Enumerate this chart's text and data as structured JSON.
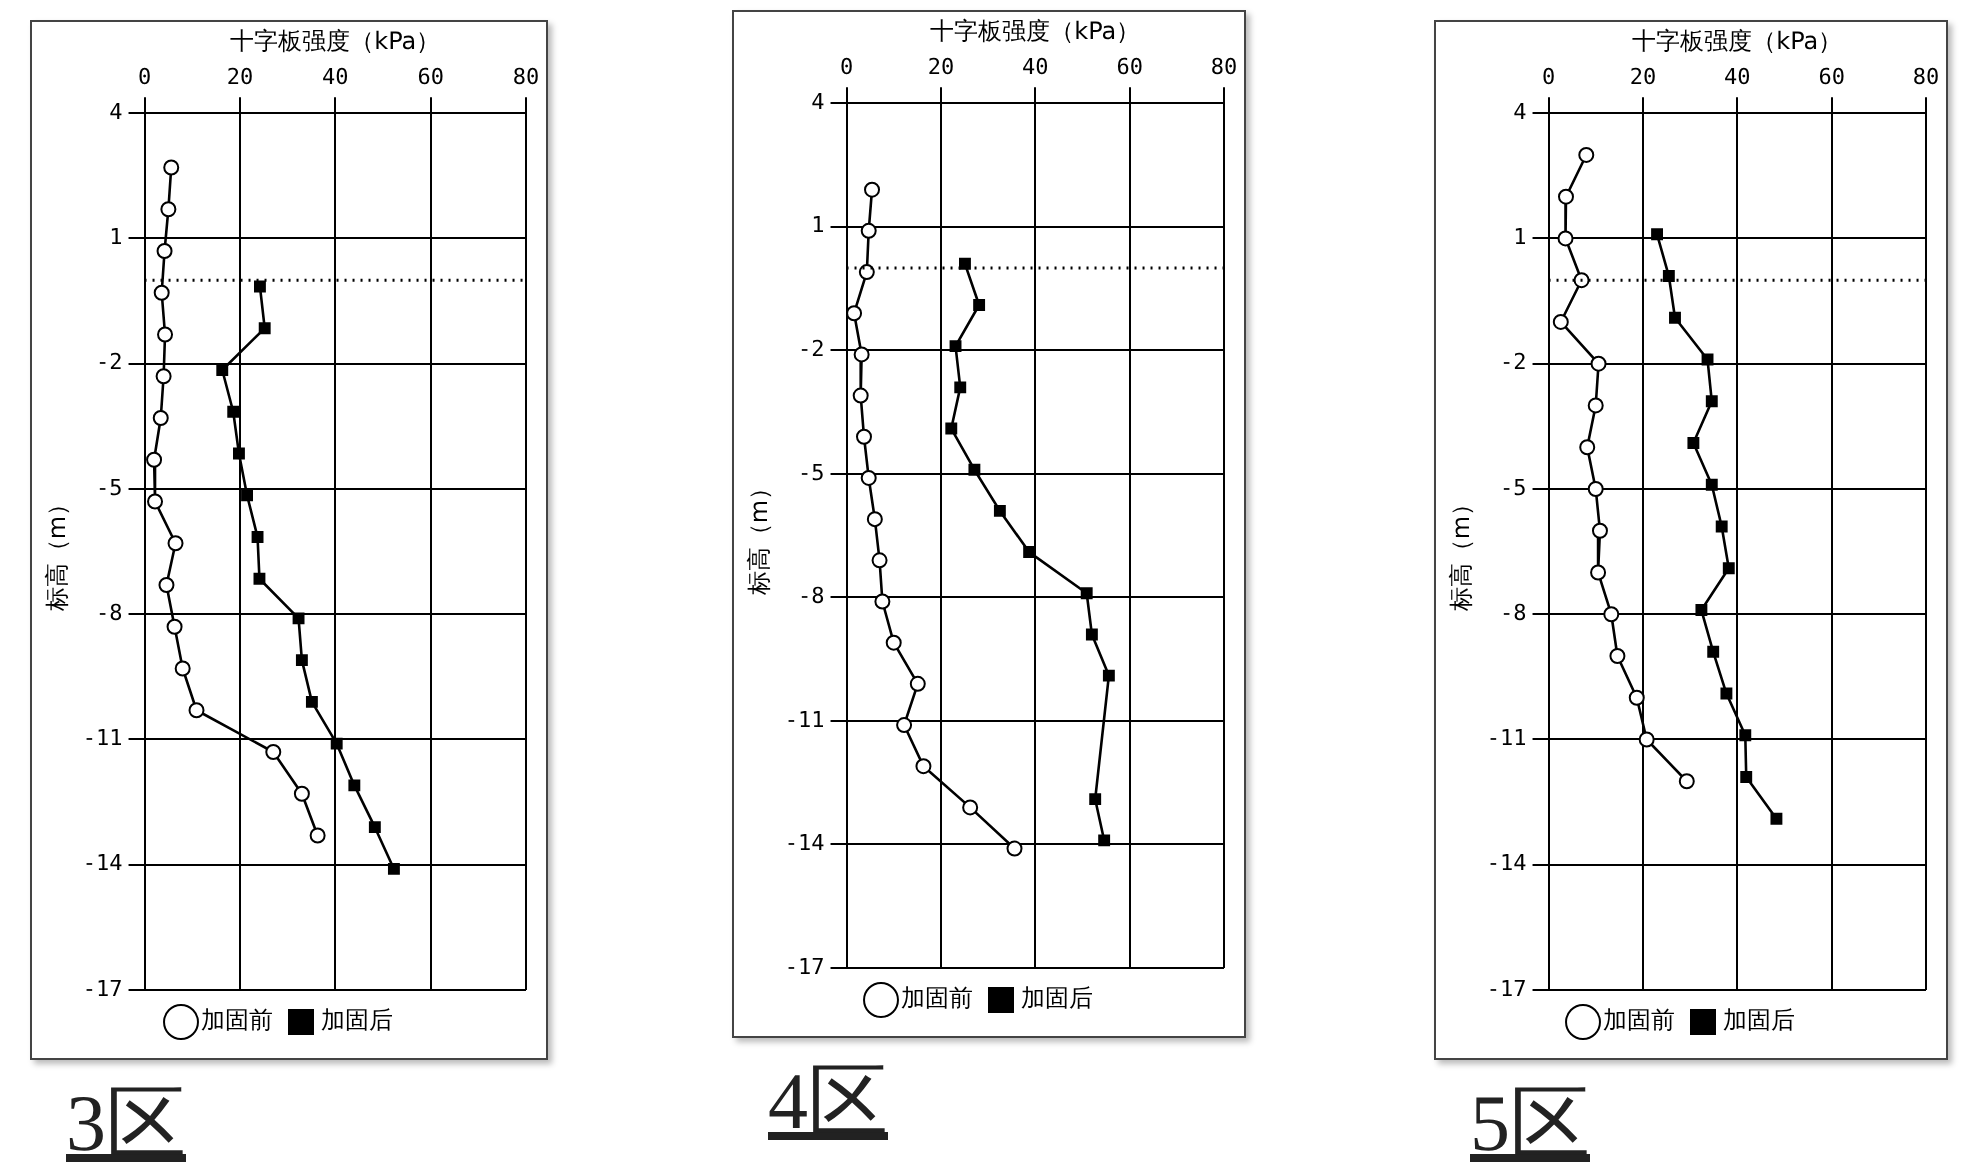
{
  "chart_data": [
    {
      "type": "line",
      "xlabel": "十字板强度（kPa）",
      "ylabel": "标高（m）",
      "xlim": [
        0,
        80
      ],
      "xticks": [
        0,
        20,
        40,
        60,
        80
      ],
      "ylim": [
        -17,
        4
      ],
      "yticks": [
        -17,
        -14,
        -11,
        -8,
        -5,
        -2,
        1,
        4
      ],
      "grid": true,
      "legend": "bottom",
      "ref_lines": [
        {
          "axis": "y",
          "value": 0,
          "line_style": "dotted",
          "color": "#000000"
        }
      ],
      "annotations": [
        "3区"
      ],
      "series": [
        {
          "name": "加固前",
          "color": "#000000",
          "marker": "circle",
          "x": [
            5.6,
            5.0,
            4.2,
            3.6,
            4.3,
            4.0,
            3.4,
            2.0,
            2.2,
            6.5,
            4.6,
            6.3,
            8.0,
            10.9,
            27.0,
            33.0,
            36.3
          ],
          "values": [
            2.7,
            1.7,
            0.7,
            -0.3,
            -1.3,
            -2.3,
            -3.3,
            -4.3,
            -5.3,
            -6.3,
            -7.3,
            -8.3,
            -9.3,
            -10.3,
            -11.3,
            -12.3,
            -13.3
          ]
        },
        {
          "name": "加固后",
          "color": "#000000",
          "marker": "square",
          "x": [
            24.2,
            25.2,
            16.3,
            18.6,
            19.8,
            21.5,
            23.7,
            24.1,
            32.3,
            33.0,
            35.1,
            40.3,
            44.0,
            48.3,
            52.3
          ],
          "values": [
            -0.15,
            -1.15,
            -2.15,
            -3.15,
            -4.15,
            -5.15,
            -6.15,
            -7.15,
            -8.1,
            -9.1,
            -10.1,
            -11.1,
            -12.1,
            -13.1,
            -14.1
          ]
        }
      ]
    },
    {
      "type": "line",
      "xlabel": "十字板强度（kPa）",
      "ylabel": "标高（m）",
      "xlim": [
        0,
        80
      ],
      "xticks": [
        0,
        20,
        40,
        60,
        80
      ],
      "ylim": [
        -17,
        4
      ],
      "yticks": [
        -17,
        -14,
        -11,
        -8,
        -5,
        -2,
        1,
        4
      ],
      "grid": true,
      "legend": "bottom",
      "ref_lines": [
        {
          "axis": "y",
          "value": 0,
          "line_style": "dotted",
          "color": "#000000"
        }
      ],
      "annotations": [
        "4区"
      ],
      "series": [
        {
          "name": "加固前",
          "color": "#000000",
          "marker": "circle",
          "x": [
            5.4,
            4.7,
            4.3,
            1.6,
            3.2,
            3.0,
            3.7,
            4.7,
            6.0,
            7.0,
            7.6,
            10.0,
            15.1,
            12.2,
            16.3,
            26.2,
            35.6
          ],
          "values": [
            1.9,
            0.9,
            -0.1,
            -1.1,
            -2.1,
            -3.1,
            -4.1,
            -5.1,
            -6.1,
            -7.1,
            -8.1,
            -9.1,
            -10.1,
            -11.1,
            -12.1,
            -13.1,
            -14.1
          ]
        },
        {
          "name": "加固后",
          "color": "#000000",
          "marker": "square",
          "x": [
            25.1,
            28.1,
            23.1,
            24.1,
            22.2,
            27.1,
            32.5,
            38.7,
            50.9,
            52.0,
            55.6,
            52.7,
            54.6
          ],
          "values": [
            0.1,
            -0.9,
            -1.9,
            -2.9,
            -3.9,
            -4.9,
            -5.9,
            -6.9,
            -7.9,
            -8.9,
            -9.9,
            -12.9,
            -13.9
          ]
        }
      ]
    },
    {
      "type": "line",
      "xlabel": "十字板强度（kPa）",
      "ylabel": "标高（m）",
      "xlim": [
        0,
        80
      ],
      "xticks": [
        0,
        20,
        40,
        60,
        80
      ],
      "ylim": [
        -17,
        4
      ],
      "yticks": [
        -17,
        -14,
        -11,
        -8,
        -5,
        -2,
        1,
        4
      ],
      "grid": true,
      "legend": "bottom",
      "ref_lines": [
        {
          "axis": "y",
          "value": 0,
          "line_style": "dotted",
          "color": "#000000"
        }
      ],
      "annotations": [
        "5区"
      ],
      "series": [
        {
          "name": "加固前",
          "color": "#000000",
          "marker": "circle",
          "x": [
            8.0,
            3.7,
            3.6,
            7.0,
            2.6,
            10.6,
            10.0,
            8.2,
            10.0,
            10.9,
            10.5,
            13.3,
            14.6,
            18.7,
            20.8,
            29.3
          ],
          "values": [
            3,
            2,
            1,
            0,
            -1,
            -2,
            -3,
            -4,
            -5,
            -6,
            -7,
            -8,
            -9,
            -10,
            -11,
            -12
          ]
        },
        {
          "name": "加固后",
          "color": "#000000",
          "marker": "square",
          "x": [
            23.0,
            25.5,
            26.8,
            33.7,
            34.6,
            30.7,
            34.6,
            36.7,
            38.2,
            32.4,
            34.9,
            37.7,
            41.7,
            41.9,
            48.3
          ],
          "values": [
            1.1,
            0.1,
            -0.9,
            -1.9,
            -2.9,
            -3.9,
            -4.9,
            -5.9,
            -6.9,
            -7.9,
            -8.9,
            -9.9,
            -10.9,
            -11.9,
            -12.9
          ]
        }
      ]
    }
  ]
}
